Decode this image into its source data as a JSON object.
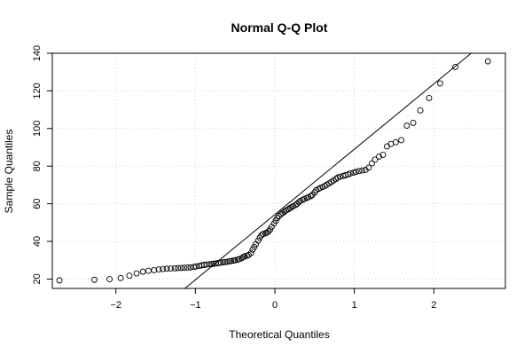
{
  "chart_data": {
    "type": "scatter",
    "title": "Normal Q-Q Plot",
    "xlabel": "Theoretical Quantiles",
    "ylabel": "Sample Quantiles",
    "xlim": [
      -2.8,
      2.9
    ],
    "ylim": [
      15,
      140
    ],
    "x_ticks": [
      -2,
      -1,
      0,
      1,
      2
    ],
    "y_ticks": [
      20,
      40,
      60,
      80,
      100,
      120,
      140
    ],
    "x_tick_labels": [
      "−2",
      "−1",
      "0",
      "1",
      "2"
    ],
    "y_tick_labels": [
      "20",
      "40",
      "60",
      "80",
      "100",
      "120",
      "140"
    ],
    "grid": true,
    "legend": "none",
    "reference_line": {
      "slope": 34.7,
      "intercept": 54.3
    },
    "colors": {
      "points": "#000000",
      "line": "#000000",
      "grid": "#d3d3d3",
      "background": "#ffffff"
    },
    "points": [
      [
        -2.71,
        19.3
      ],
      [
        -2.27,
        19.6
      ],
      [
        -2.08,
        19.9
      ],
      [
        -1.94,
        20.5
      ],
      [
        -1.83,
        21.8
      ],
      [
        -1.74,
        23.0
      ],
      [
        -1.66,
        23.9
      ],
      [
        -1.59,
        24.4
      ],
      [
        -1.52,
        24.7
      ],
      [
        -1.46,
        25.1
      ],
      [
        -1.41,
        25.3
      ],
      [
        -1.36,
        25.5
      ],
      [
        -1.31,
        25.6
      ],
      [
        -1.26,
        25.7
      ],
      [
        -1.22,
        25.8
      ],
      [
        -1.18,
        25.9
      ],
      [
        -1.14,
        26.0
      ],
      [
        -1.1,
        26.1
      ],
      [
        -1.06,
        26.2
      ],
      [
        -1.02,
        26.4
      ],
      [
        -0.99,
        26.7
      ],
      [
        -0.95,
        27.0
      ],
      [
        -0.92,
        27.3
      ],
      [
        -0.89,
        27.5
      ],
      [
        -0.86,
        27.7
      ],
      [
        -0.82,
        27.9
      ],
      [
        -0.79,
        28.0
      ],
      [
        -0.77,
        28.1
      ],
      [
        -0.74,
        28.3
      ],
      [
        -0.71,
        28.5
      ],
      [
        -0.68,
        28.7
      ],
      [
        -0.65,
        28.9
      ],
      [
        -0.63,
        29.0
      ],
      [
        -0.6,
        29.2
      ],
      [
        -0.57,
        29.4
      ],
      [
        -0.55,
        29.6
      ],
      [
        -0.52,
        29.8
      ],
      [
        -0.5,
        30.0
      ],
      [
        -0.47,
        30.3
      ],
      [
        -0.45,
        30.6
      ],
      [
        -0.42,
        31.0
      ],
      [
        -0.4,
        31.6
      ],
      [
        -0.38,
        32.1
      ],
      [
        -0.35,
        32.4
      ],
      [
        -0.33,
        32.8
      ],
      [
        -0.3,
        33.8
      ],
      [
        -0.28,
        35.6
      ],
      [
        -0.26,
        37.0
      ],
      [
        -0.24,
        38.5
      ],
      [
        -0.21,
        40.4
      ],
      [
        -0.19,
        42.0
      ],
      [
        -0.17,
        43.2
      ],
      [
        -0.15,
        43.9
      ],
      [
        -0.12,
        44.3
      ],
      [
        -0.1,
        44.7
      ],
      [
        -0.08,
        45.3
      ],
      [
        -0.06,
        46.3
      ],
      [
        -0.04,
        47.8
      ],
      [
        -0.01,
        49.5
      ],
      [
        0.01,
        51.0
      ],
      [
        0.03,
        52.4
      ],
      [
        0.05,
        53.5
      ],
      [
        0.08,
        54.5
      ],
      [
        0.1,
        55.2
      ],
      [
        0.12,
        55.8
      ],
      [
        0.14,
        56.5
      ],
      [
        0.17,
        57.1
      ],
      [
        0.19,
        57.7
      ],
      [
        0.21,
        58.2
      ],
      [
        0.23,
        58.7
      ],
      [
        0.26,
        59.3
      ],
      [
        0.28,
        60.0
      ],
      [
        0.3,
        60.8
      ],
      [
        0.32,
        61.5
      ],
      [
        0.35,
        62.1
      ],
      [
        0.37,
        62.6
      ],
      [
        0.4,
        63.1
      ],
      [
        0.42,
        63.5
      ],
      [
        0.45,
        64.0
      ],
      [
        0.47,
        64.7
      ],
      [
        0.5,
        66.0
      ],
      [
        0.52,
        67.2
      ],
      [
        0.55,
        67.9
      ],
      [
        0.57,
        68.4
      ],
      [
        0.6,
        68.9
      ],
      [
        0.63,
        69.5
      ],
      [
        0.65,
        70.1
      ],
      [
        0.68,
        70.8
      ],
      [
        0.71,
        71.6
      ],
      [
        0.74,
        72.4
      ],
      [
        0.77,
        73.2
      ],
      [
        0.79,
        73.9
      ],
      [
        0.82,
        74.4
      ],
      [
        0.86,
        74.8
      ],
      [
        0.89,
        75.2
      ],
      [
        0.92,
        75.6
      ],
      [
        0.95,
        76.1
      ],
      [
        0.99,
        76.6
      ],
      [
        1.02,
        77.0
      ],
      [
        1.06,
        77.4
      ],
      [
        1.1,
        77.7
      ],
      [
        1.14,
        78.0
      ],
      [
        1.18,
        79.2
      ],
      [
        1.22,
        81.5
      ],
      [
        1.26,
        83.5
      ],
      [
        1.31,
        85.1
      ],
      [
        1.36,
        86.0
      ],
      [
        1.41,
        90.5
      ],
      [
        1.46,
        91.8
      ],
      [
        1.52,
        92.7
      ],
      [
        1.59,
        93.8
      ],
      [
        1.66,
        101.5
      ],
      [
        1.74,
        103.0
      ],
      [
        1.83,
        109.6
      ],
      [
        1.94,
        116.2
      ],
      [
        2.08,
        124.0
      ],
      [
        2.27,
        132.7
      ],
      [
        2.68,
        135.7
      ]
    ]
  }
}
